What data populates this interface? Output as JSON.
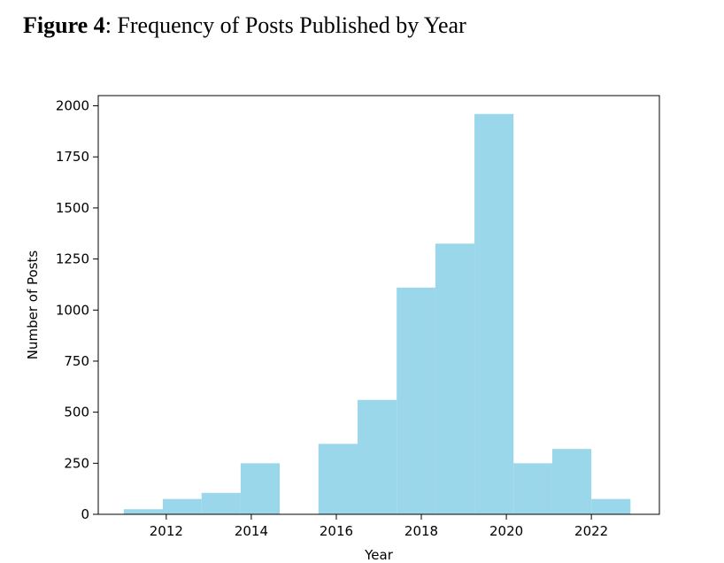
{
  "caption": {
    "label": "Figure 4",
    "separator": ":",
    "text": " Frequency of Posts Published by Year"
  },
  "chart_data": {
    "type": "bar",
    "subtype": "histogram",
    "title": "",
    "xlabel": "Year",
    "ylabel": "Number of Posts",
    "xlim": [
      2010.4,
      2023.6
    ],
    "ylim": [
      0,
      2050
    ],
    "x_ticks": [
      2012,
      2014,
      2016,
      2018,
      2020,
      2022
    ],
    "y_ticks": [
      0,
      250,
      500,
      750,
      1000,
      1250,
      1500,
      1750,
      2000
    ],
    "bin_edges": [
      2011.0,
      2011.92,
      2012.83,
      2013.75,
      2014.67,
      2015.58,
      2016.5,
      2017.42,
      2018.33,
      2019.25,
      2020.17,
      2021.08,
      2022.0,
      2022.92
    ],
    "values": [
      25,
      75,
      105,
      250,
      0,
      345,
      560,
      1110,
      1325,
      1960,
      250,
      320,
      75
    ],
    "bar_color": "#9ad7ea",
    "grid": false,
    "legend": "none"
  }
}
